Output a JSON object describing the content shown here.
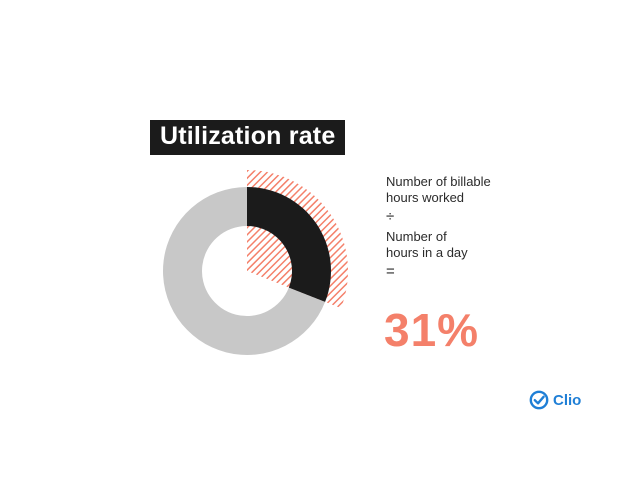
{
  "title": "Utilization rate",
  "formula": {
    "numerator": "Number of billable\nhours worked",
    "divide_symbol": "÷",
    "denominator": "Number of\nhours in a day",
    "equals_symbol": "="
  },
  "result_text": "31%",
  "brand": {
    "name": "Clio",
    "color": "#1f7fd6"
  },
  "colors": {
    "accent": "#f4806a",
    "ring": "#c8c8c8",
    "dark": "#1b1b1b"
  },
  "chart_data": {
    "type": "pie",
    "title": "Utilization rate",
    "series": [
      {
        "value": 31
      },
      {
        "value": 69
      }
    ],
    "display": "31%"
  }
}
